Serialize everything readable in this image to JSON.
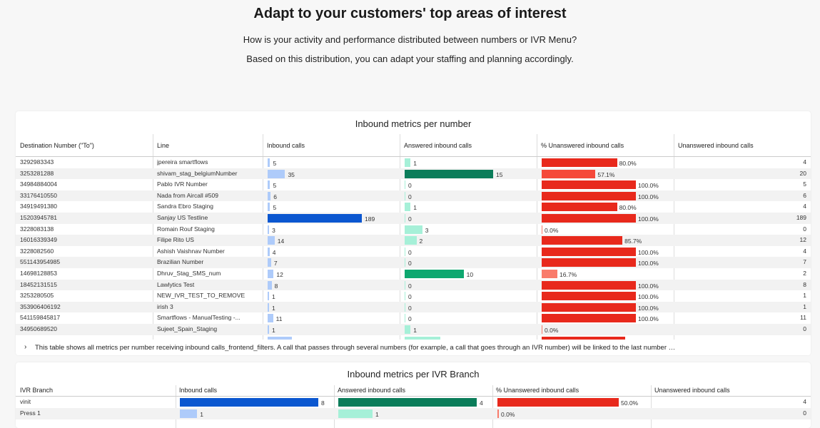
{
  "hero": {
    "title": "Adapt to your customers' top areas of interest",
    "line1": "How is your activity and performance distributed between numbers or IVR Menu?",
    "line2": "Based on this distribution, you can adapt your staffing and planning accordingly."
  },
  "colors": {
    "inbound_light": "#aecbfa",
    "inbound_dark": "#0b57d0",
    "answered_light": "#a6f0d8",
    "answered_dark": "#0b7d5a",
    "unanswered_red": "#e8291c",
    "unanswered_light": "#f97b6b"
  },
  "numbers_table": {
    "title": "Inbound metrics per number",
    "headers": [
      "Destination Number (\"To\")",
      "Line",
      "Inbound calls",
      "Answered inbound calls",
      "% Unanswered inbound calls",
      "Unanswered inbound calls"
    ],
    "rows": [
      {
        "number": "3292983343",
        "line": "jpereira smartflows",
        "inbound": "5",
        "answered": "1",
        "pct": "80.0%",
        "unanswered": "4"
      },
      {
        "number": "3253281288",
        "line": "shivam_stag_belgiumNumber",
        "inbound": "35",
        "answered": "15",
        "pct": "57.1%",
        "unanswered": "20"
      },
      {
        "number": "34984884004",
        "line": "Pablo IVR Number",
        "inbound": "5",
        "answered": "0",
        "pct": "100.0%",
        "unanswered": "5"
      },
      {
        "number": "33176410550",
        "line": "Nada from Aircall #509",
        "inbound": "6",
        "answered": "0",
        "pct": "100.0%",
        "unanswered": "6"
      },
      {
        "number": "34919491380",
        "line": "Sandra Ebro Staging",
        "inbound": "5",
        "answered": "1",
        "pct": "80.0%",
        "unanswered": "4"
      },
      {
        "number": "15203945781",
        "line": "Sanjay US Testline",
        "inbound": "189",
        "answered": "0",
        "pct": "100.0%",
        "unanswered": "189"
      },
      {
        "number": "3228083138",
        "line": "Romain Rouf Staging",
        "inbound": "3",
        "answered": "3",
        "pct": "0.0%",
        "unanswered": "0"
      },
      {
        "number": "16016339349",
        "line": "Filipe Rito US",
        "inbound": "14",
        "answered": "2",
        "pct": "85.7%",
        "unanswered": "12"
      },
      {
        "number": "3228082560",
        "line": "Ashish Vaishnav Number",
        "inbound": "4",
        "answered": "0",
        "pct": "100.0%",
        "unanswered": "4"
      },
      {
        "number": "551143954985",
        "line": "Brazilian Number",
        "inbound": "7",
        "answered": "0",
        "pct": "100.0%",
        "unanswered": "7"
      },
      {
        "number": "14698128853",
        "line": "Dhruv_Stag_SMS_num",
        "inbound": "12",
        "answered": "10",
        "pct": "16.7%",
        "unanswered": "2"
      },
      {
        "number": "18452131515",
        "line": "Lawlytics Test",
        "inbound": "8",
        "answered": "0",
        "pct": "100.0%",
        "unanswered": "8"
      },
      {
        "number": "3253280505",
        "line": "NEW_IVR_TEST_TO_REMOVE",
        "inbound": "1",
        "answered": "0",
        "pct": "100.0%",
        "unanswered": "1"
      },
      {
        "number": "353906406192",
        "line": "irish 3",
        "inbound": "1",
        "answered": "0",
        "pct": "100.0%",
        "unanswered": "1"
      },
      {
        "number": "541159845817",
        "line": "Smartflows - ManualTesting -...",
        "inbound": "11",
        "answered": "0",
        "pct": "100.0%",
        "unanswered": "11"
      },
      {
        "number": "34950689520",
        "line": "Sujeet_Spain_Staging",
        "inbound": "1",
        "answered": "1",
        "pct": "0.0%",
        "unanswered": "0"
      }
    ],
    "footnote_chevron": "›",
    "footnote": "This table shows all metrics per number receiving inbound calls_frontend_filters. A call that passes through several numbers (for example, a call that goes through an IVR number) will be linked to the last number …"
  },
  "ivr_table": {
    "title": "Inbound metrics per IVR Branch",
    "headers": [
      "IVR Branch",
      "Inbound calls",
      "Answered inbound calls",
      "% Unanswered inbound calls",
      "Unanswered inbound calls"
    ],
    "rows": [
      {
        "branch": "vinit",
        "inbound": "8",
        "answered": "4",
        "pct": "50.0%",
        "unanswered": "4"
      },
      {
        "branch": "Press 1",
        "inbound": "1",
        "answered": "1",
        "pct": "0.0%",
        "unanswered": "0"
      }
    ]
  }
}
